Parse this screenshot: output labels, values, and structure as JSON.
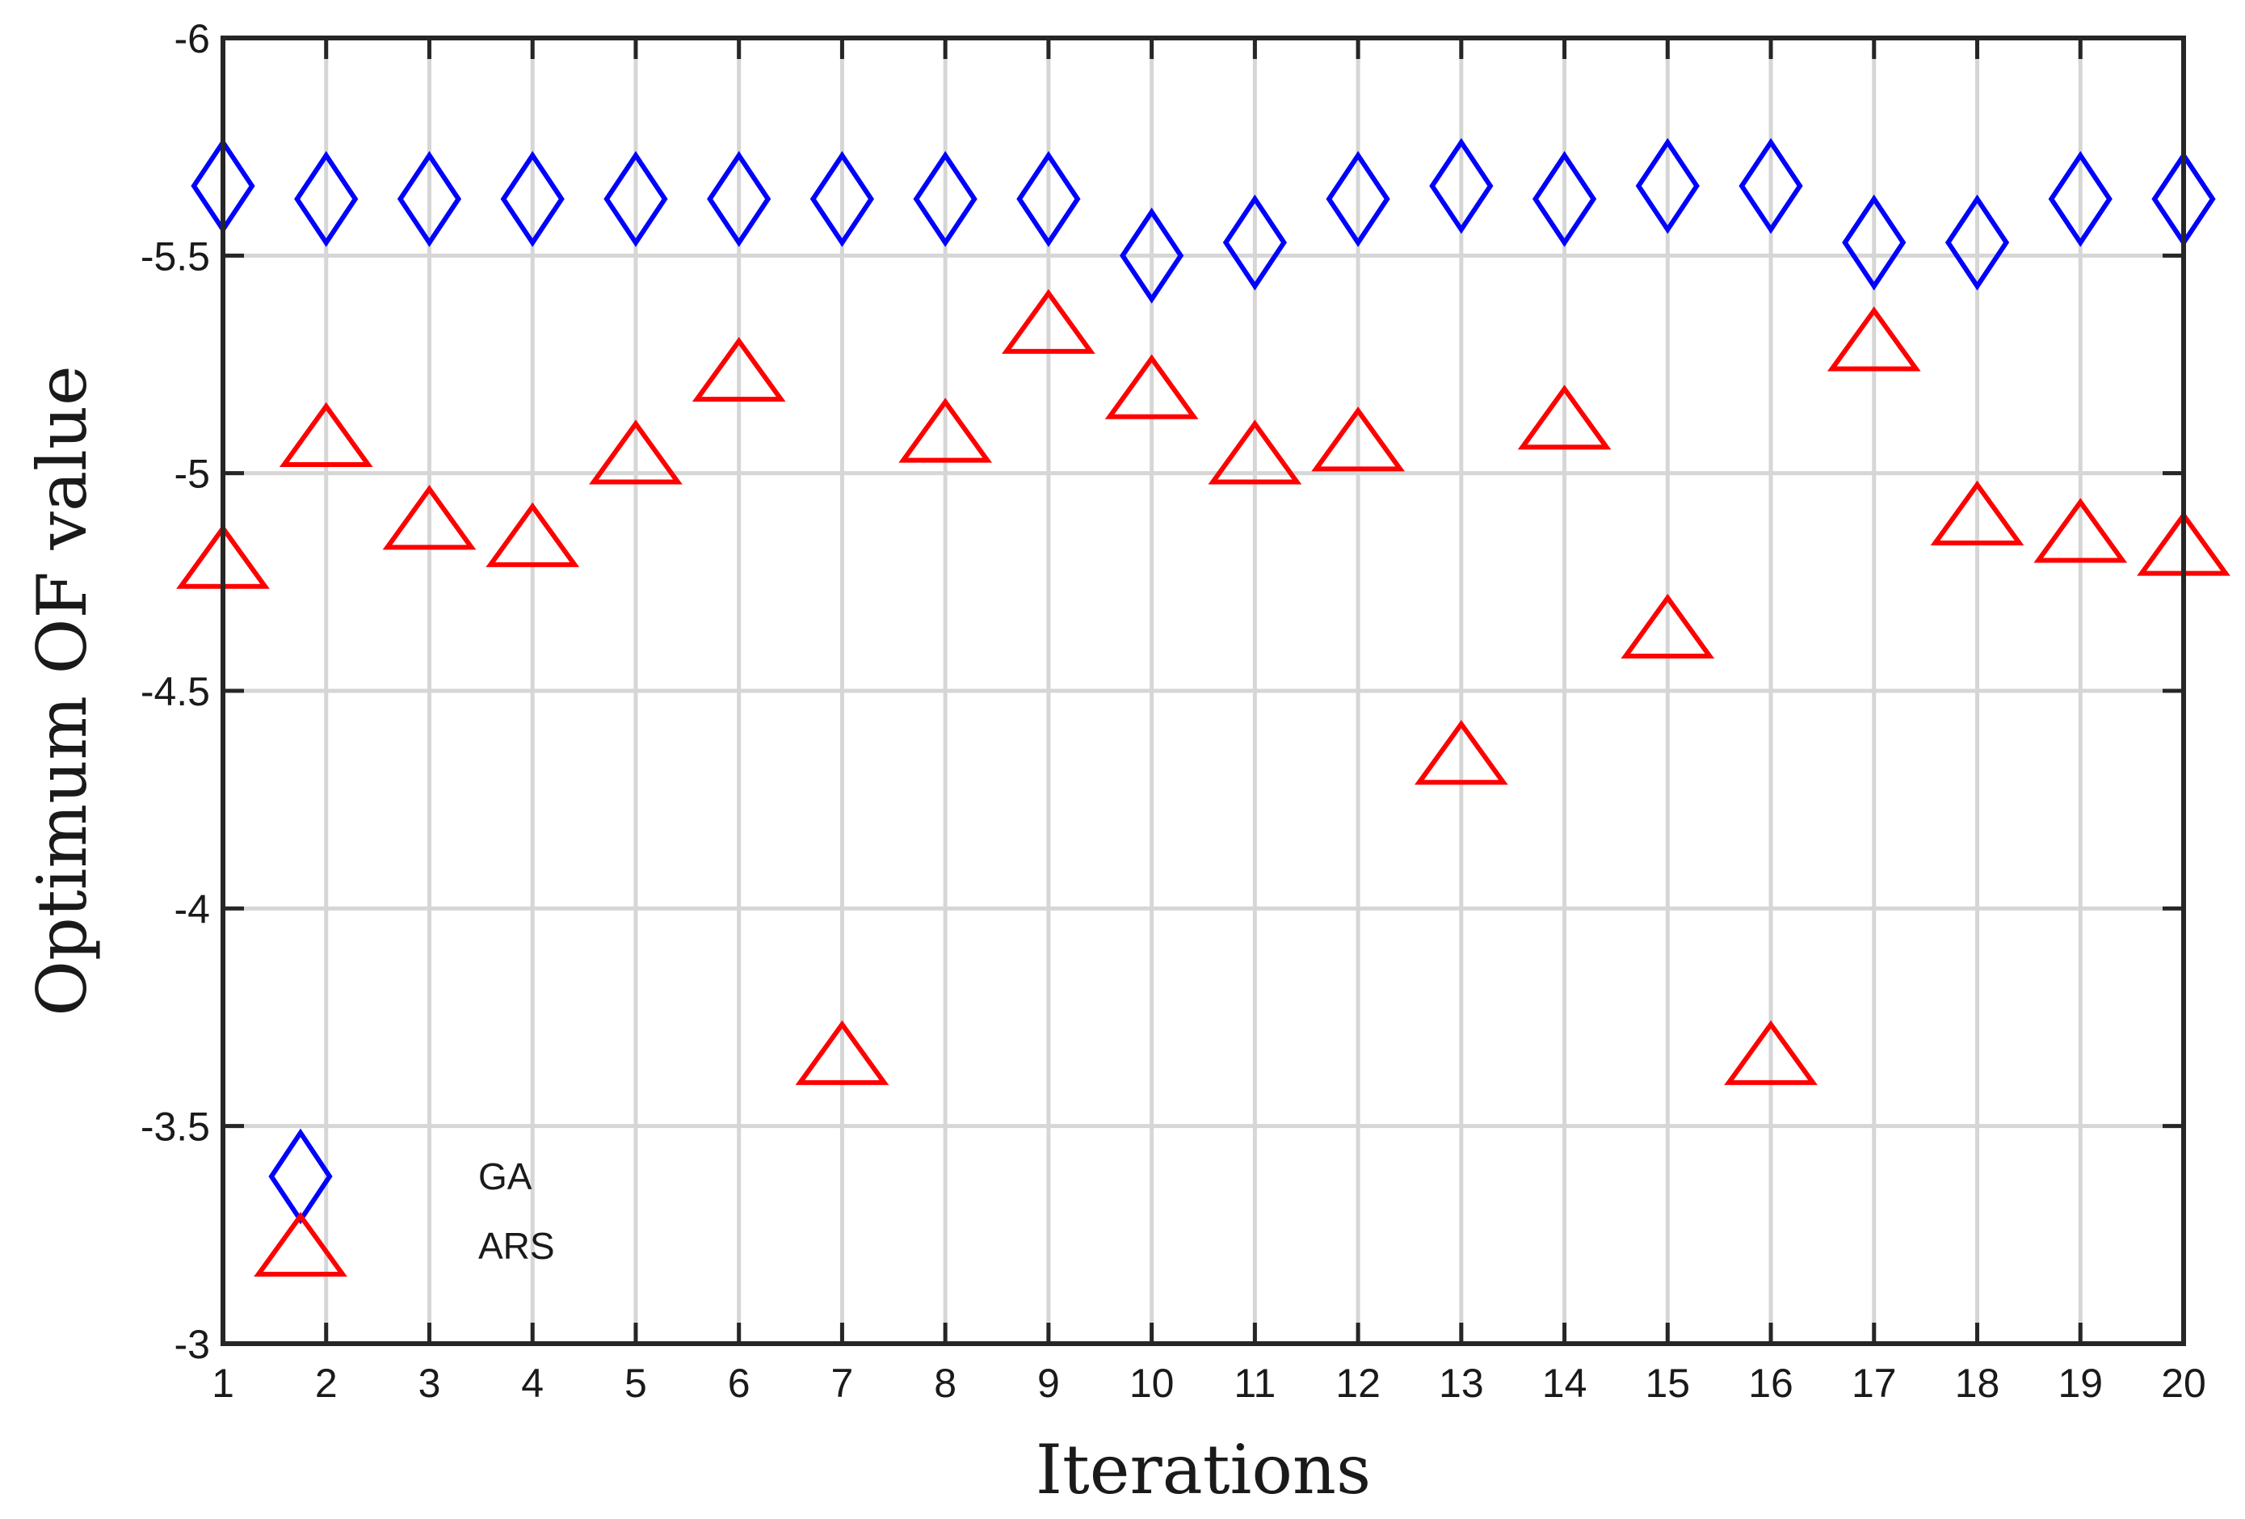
{
  "chart_data": {
    "type": "scatter",
    "xlabel": "Iterations",
    "ylabel": "Optimum OF value",
    "xlim": [
      1,
      20
    ],
    "ylim": [
      -6,
      -3
    ],
    "y_reversed": true,
    "grid": true,
    "legend_position": "bottom-left",
    "x_ticks": [
      1,
      2,
      3,
      4,
      5,
      6,
      7,
      8,
      9,
      10,
      11,
      12,
      13,
      14,
      15,
      16,
      17,
      18,
      19,
      20
    ],
    "y_ticks": [
      -6,
      -5.5,
      -5,
      -4.5,
      -4,
      -3.5,
      -3
    ],
    "x": [
      1,
      2,
      3,
      4,
      5,
      6,
      7,
      8,
      9,
      10,
      11,
      12,
      13,
      14,
      15,
      16,
      17,
      18,
      19,
      20
    ],
    "series": [
      {
        "name": "GA",
        "marker": "diamond",
        "color": "#0000ff",
        "values": [
          -5.66,
          -5.63,
          -5.63,
          -5.63,
          -5.63,
          -5.63,
          -5.63,
          -5.63,
          -5.63,
          -5.5,
          -5.53,
          -5.63,
          -5.66,
          -5.63,
          -5.66,
          -5.66,
          -5.53,
          -5.53,
          -5.63,
          -5.63
        ]
      },
      {
        "name": "ARS",
        "marker": "triangle",
        "color": "#ff0000",
        "values": [
          -4.79,
          -5.07,
          -4.88,
          -4.84,
          -5.03,
          -5.22,
          -3.65,
          -5.08,
          -5.33,
          -5.18,
          -5.03,
          -5.06,
          -4.34,
          -5.11,
          -4.63,
          -3.65,
          -5.29,
          -4.89,
          -4.85,
          -4.82
        ]
      }
    ]
  }
}
